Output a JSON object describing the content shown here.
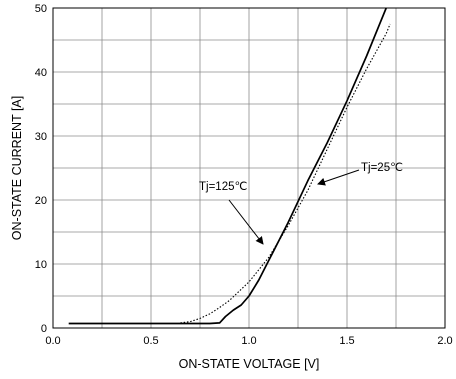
{
  "chart_data": {
    "type": "line",
    "title": "",
    "xlabel": "ON-STATE VOLTAGE [V]",
    "ylabel": "ON-STATE CURRENT [A]",
    "xlim": [
      0.0,
      2.0
    ],
    "ylim": [
      0,
      50
    ],
    "x_ticks": [
      "0.0",
      "0.5",
      "1.0",
      "1.5",
      "2.0"
    ],
    "y_ticks": [
      "0",
      "10",
      "20",
      "30",
      "40",
      "50"
    ],
    "grid": true,
    "series": [
      {
        "name": "Tj=25℃",
        "style": "solid",
        "color": "#000000",
        "x": [
          0.08,
          0.3,
          0.5,
          0.7,
          0.8,
          0.85,
          0.88,
          0.92,
          0.96,
          1.0,
          1.05,
          1.1,
          1.2,
          1.3,
          1.4,
          1.5,
          1.6,
          1.7
        ],
        "y": [
          0.7,
          0.7,
          0.7,
          0.7,
          0.7,
          0.8,
          1.8,
          2.8,
          3.6,
          5.0,
          7.5,
          10.5,
          16.5,
          23.0,
          29.0,
          35.5,
          42.5,
          50.0
        ]
      },
      {
        "name": "Tj=125℃",
        "style": "dotted",
        "color": "#000000",
        "x": [
          0.65,
          0.7,
          0.75,
          0.8,
          0.85,
          0.9,
          1.0,
          1.1,
          1.2,
          1.3,
          1.4,
          1.5,
          1.6,
          1.7,
          1.72
        ],
        "y": [
          0.8,
          1.0,
          1.5,
          2.2,
          3.2,
          4.3,
          7.2,
          11.0,
          16.0,
          21.5,
          28.0,
          34.5,
          40.5,
          46.0,
          47.5
        ]
      }
    ],
    "annotations": [
      {
        "text": "Tj=125℃",
        "points_to": "Tj=125℃"
      },
      {
        "text": "Tj=25℃",
        "points_to": "Tj=25℃"
      }
    ]
  }
}
